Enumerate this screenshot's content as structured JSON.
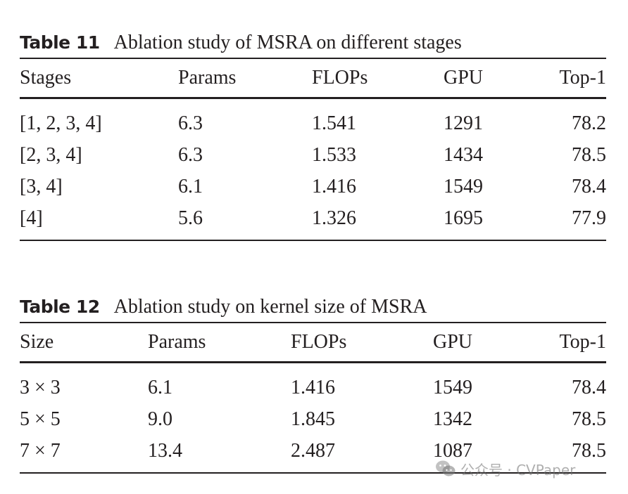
{
  "tables": [
    {
      "label": "Table 11",
      "caption": "Ablation study of MSRA on different stages",
      "columns": [
        "Stages",
        "Params",
        "FLOPs",
        "GPU",
        "Top-1"
      ],
      "rows": [
        [
          "[1, 2, 3, 4]",
          "6.3",
          "1.541",
          "1291",
          "78.2"
        ],
        [
          "[2, 3, 4]",
          "6.3",
          "1.533",
          "1434",
          "78.5"
        ],
        [
          "[3, 4]",
          "6.1",
          "1.416",
          "1549",
          "78.4"
        ],
        [
          "[4]",
          "5.6",
          "1.326",
          "1695",
          "77.9"
        ]
      ]
    },
    {
      "label": "Table 12",
      "caption": "Ablation study on kernel size of MSRA",
      "columns": [
        "Size",
        "Params",
        "FLOPs",
        "GPU",
        "Top-1"
      ],
      "rows": [
        [
          "3 × 3",
          "6.1",
          "1.416",
          "1549",
          "78.4"
        ],
        [
          "5 × 5",
          "9.0",
          "1.845",
          "1342",
          "78.5"
        ],
        [
          "7 × 7",
          "13.4",
          "2.487",
          "1087",
          "78.5"
        ]
      ]
    }
  ],
  "watermark": {
    "text": "公众号 · CVPaper",
    "icon": "wechat-icon"
  }
}
